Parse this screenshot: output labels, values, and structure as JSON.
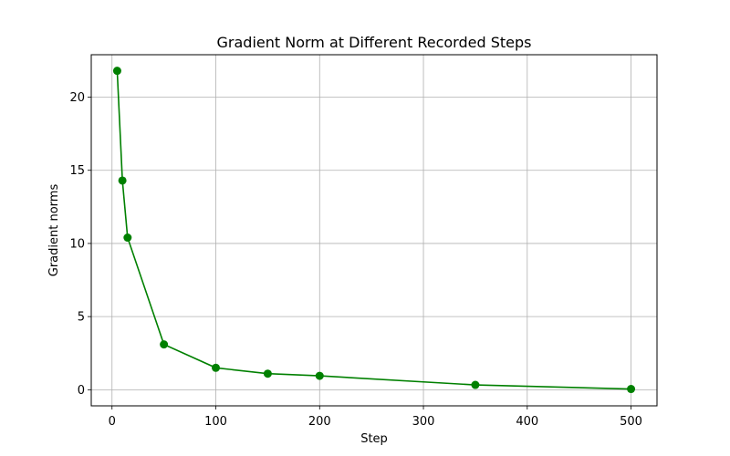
{
  "chart_data": {
    "type": "line",
    "title": "Gradient Norm at Different Recorded Steps",
    "xlabel": "Step",
    "ylabel": "Gradient norms",
    "xlim": [
      -20,
      525
    ],
    "ylim": [
      -1.1,
      22.9
    ],
    "xticks": [
      0,
      100,
      200,
      300,
      400,
      500
    ],
    "yticks": [
      0,
      5,
      10,
      15,
      20
    ],
    "grid": true,
    "series": [
      {
        "color": "#008000",
        "marker": "circle",
        "x": [
          5,
          10,
          15,
          50,
          100,
          150,
          200,
          350,
          500
        ],
        "y": [
          21.8,
          14.3,
          10.4,
          3.1,
          1.5,
          1.1,
          0.95,
          0.33,
          0.05
        ]
      }
    ]
  }
}
